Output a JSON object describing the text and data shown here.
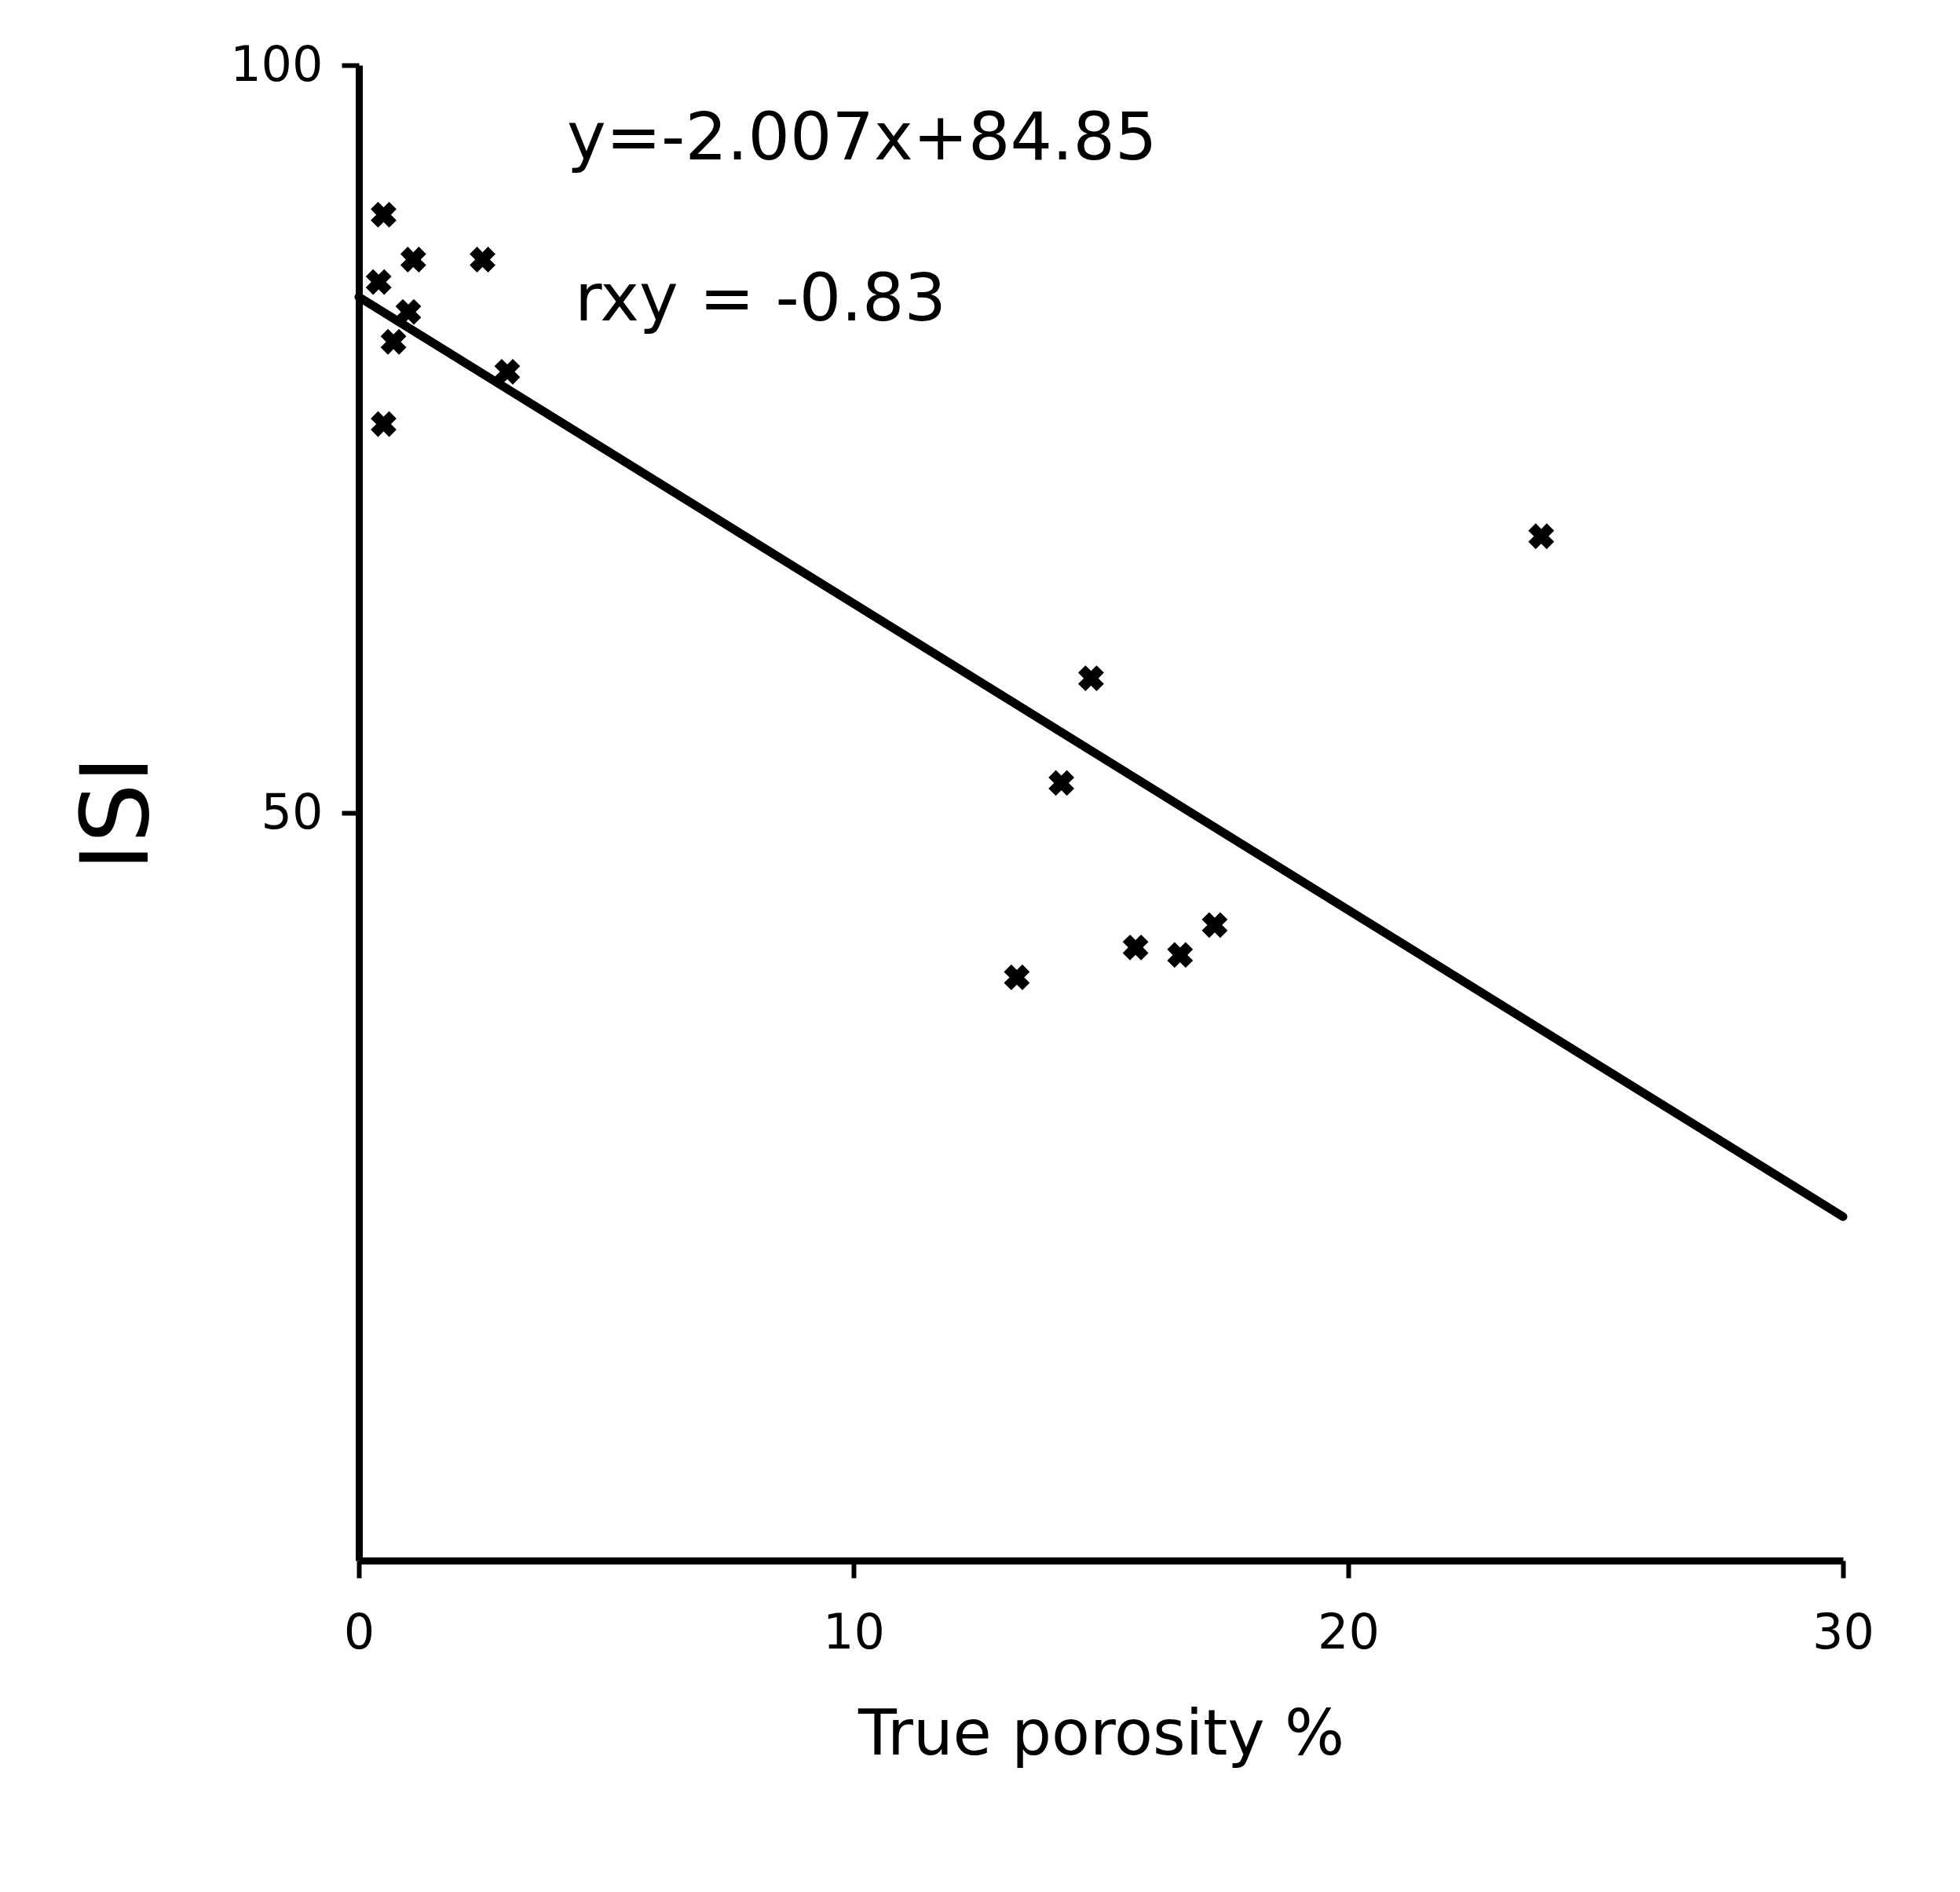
{
  "chart_data": {
    "type": "scatter",
    "xlabel": "True porosity %",
    "ylabel": "ISI",
    "annotations": [
      "y=-2.007x+84.85",
      "rxy = -0.83"
    ],
    "xlim": [
      0,
      30
    ],
    "ylim": [
      0,
      100
    ],
    "xticks": [
      0,
      10,
      20,
      30
    ],
    "yticks": [
      50,
      100
    ],
    "marker": "cross",
    "line_style": "solid",
    "series": [
      {
        "color": "#000000",
        "x": [
          0.5,
          0.4,
          1.1,
          2.5,
          1.0,
          0.7,
          3.0,
          0.5,
          14.8,
          14.2,
          13.3,
          15.7,
          16.6,
          17.3,
          23.9
        ],
        "values": [
          90,
          85.5,
          87,
          87,
          83.5,
          81.5,
          79.5,
          76,
          59,
          52,
          39,
          41,
          40.5,
          42.5,
          68.5
        ]
      },
      {
        "type": "line",
        "marker": "none",
        "color": "#000000",
        "x": [
          0,
          30
        ],
        "values": [
          84.5,
          23
        ]
      }
    ]
  }
}
